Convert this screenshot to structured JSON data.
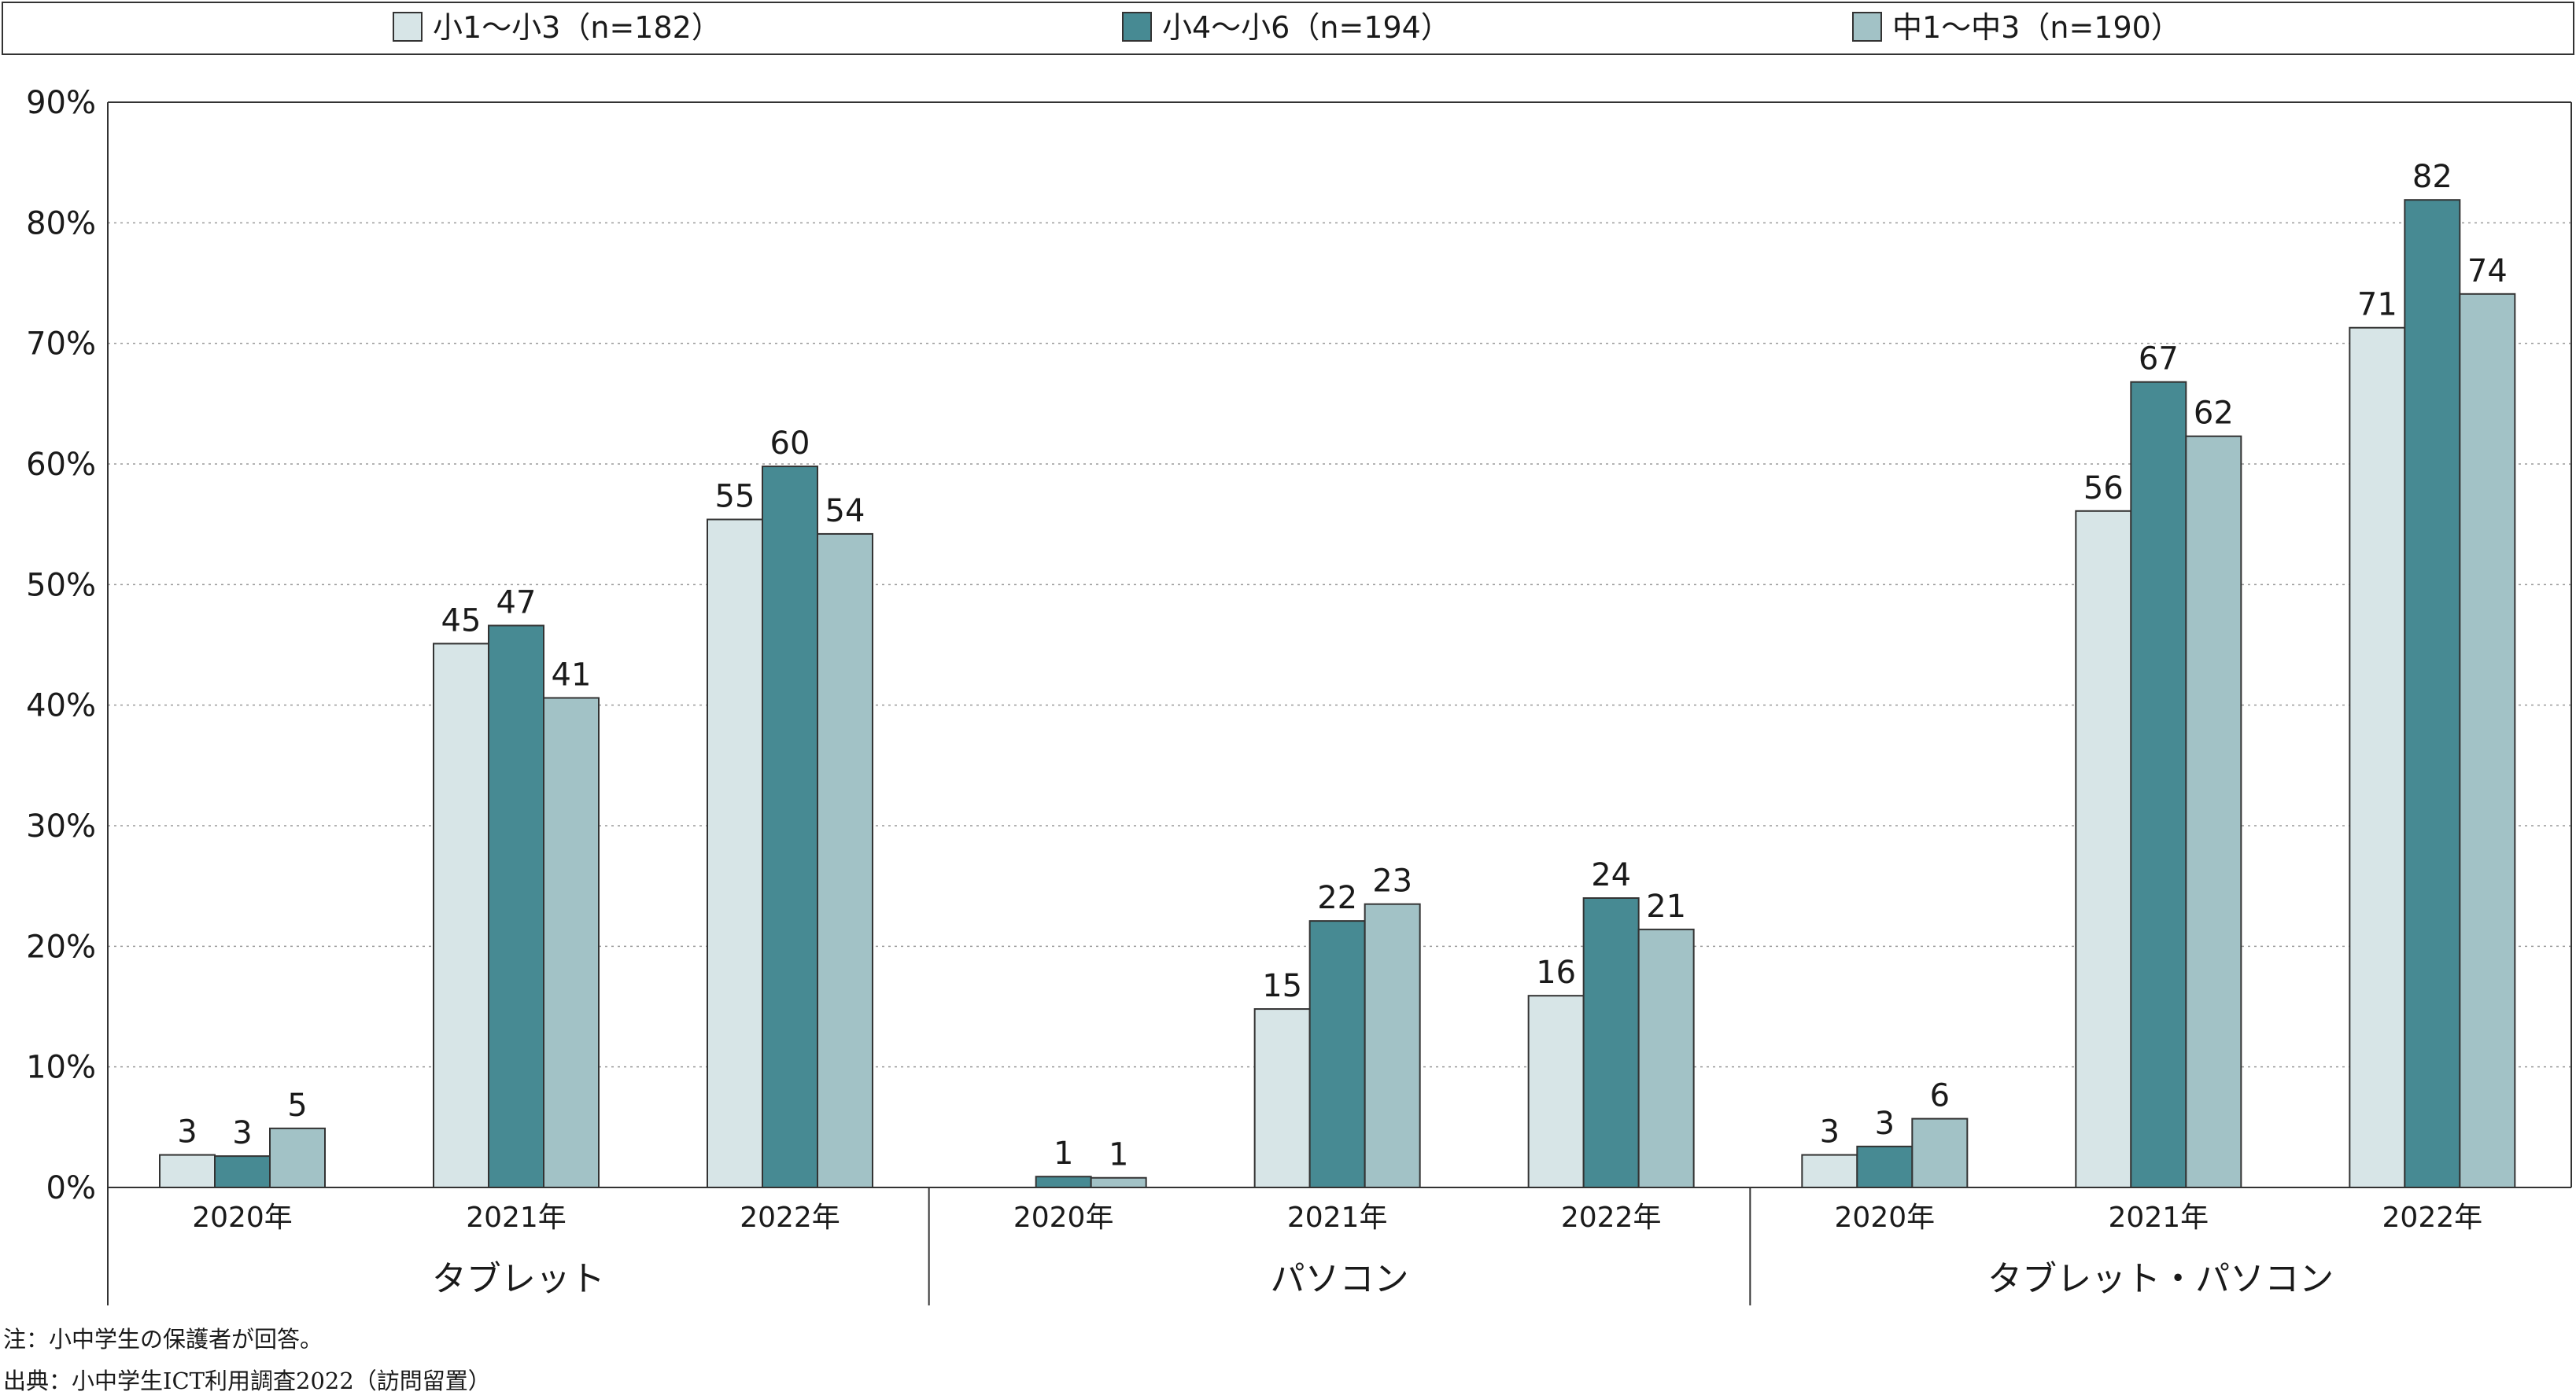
{
  "chart_data": {
    "type": "bar",
    "y_unit": "%",
    "ylim": [
      0,
      90
    ],
    "y_ticks": [
      "0%",
      "10%",
      "20%",
      "30%",
      "40%",
      "50%",
      "60%",
      "70%",
      "80%",
      "90%"
    ],
    "grid": true,
    "legend_position": "top",
    "groups": [
      {
        "label": "タブレット",
        "years": [
          "2020年",
          "2021年",
          "2022年"
        ],
        "series_values": [
          [
            3,
            45,
            55
          ],
          [
            3,
            47,
            60
          ],
          [
            5,
            41,
            54
          ]
        ]
      },
      {
        "label": "パソコン",
        "years": [
          "2020年",
          "2021年",
          "2022年"
        ],
        "series_values": [
          [
            0,
            15,
            16
          ],
          [
            1,
            22,
            24
          ],
          [
            1,
            23,
            21
          ]
        ]
      },
      {
        "label": "タブレット・パソコン",
        "years": [
          "2020年",
          "2021年",
          "2022年"
        ],
        "series_values": [
          [
            3,
            56,
            71
          ],
          [
            3,
            67,
            82
          ],
          [
            6,
            62,
            74
          ]
        ]
      }
    ],
    "exact_values": [
      [
        [
          2.7,
          45.1,
          55.4
        ],
        [
          2.6,
          46.6,
          59.8
        ],
        [
          4.9,
          40.6,
          54.2
        ]
      ],
      [
        [
          0,
          14.8,
          15.9
        ],
        [
          0.9,
          22.1,
          24.0
        ],
        [
          0.8,
          23.5,
          21.4
        ]
      ],
      [
        [
          2.7,
          56.1,
          71.3
        ],
        [
          3.4,
          66.8,
          81.9
        ],
        [
          5.7,
          62.3,
          74.1
        ]
      ]
    ],
    "series": [
      {
        "name": "小1～小3（n=182）",
        "color": "#d7e5e7"
      },
      {
        "name": "小4～小6（n=194）",
        "color": "#478a93"
      },
      {
        "name": "中1～中3（n=190）",
        "color": "#a2c2c6"
      }
    ]
  },
  "notes": {
    "note": "注：小中学生の保護者が回答。",
    "source": "出典：小中学生ICT利用調査2022（訪問留置）"
  }
}
